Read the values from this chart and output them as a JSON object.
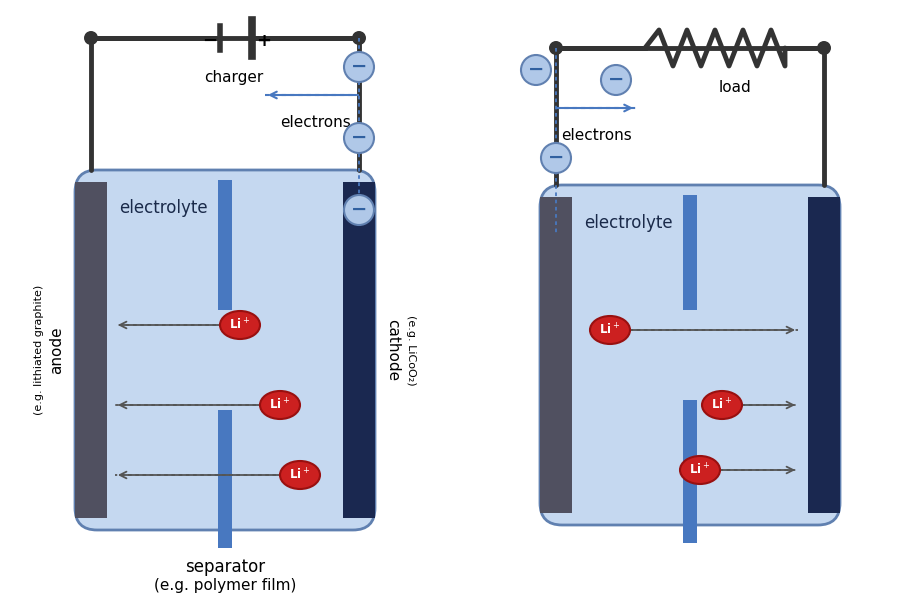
{
  "bg_color": "#ffffff",
  "electrolyte_fill": "#c5d8f0",
  "electrolyte_stroke": "#6080b0",
  "separator_color": "#4878c0",
  "anode_color": "#505060",
  "cathode_color": "#1a2850",
  "wire_color": "#333333",
  "li_ball_color": "#cc2020",
  "li_ball_edge": "#991010",
  "electron_circle_fill": "#b0c8e8",
  "electron_circle_edge": "#6080b0",
  "arrow_color": "#4878c0",
  "dashed_color": "#555555",
  "charger_label": "charger",
  "load_label": "load",
  "electrons_label": "electrons",
  "electrolyte_label": "electrolyte",
  "anode_label": "anode",
  "anode_sublabel": "(e.g. lithiated graphite)",
  "cathode_label": "cathode",
  "cathode_sublabel": "(e.g. LiCoO₂)",
  "separator_label": "separator",
  "separator_sublabel": "(e.g. polymer film)"
}
